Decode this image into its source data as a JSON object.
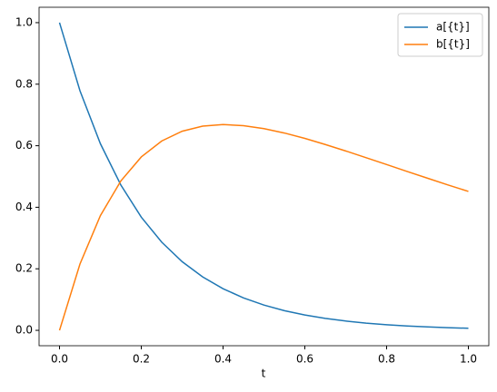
{
  "chart_data": {
    "type": "line",
    "x": [
      0,
      0.05,
      0.1,
      0.15,
      0.2,
      0.25,
      0.3,
      0.35,
      0.4,
      0.45,
      0.5,
      0.55,
      0.6,
      0.65,
      0.7,
      0.75,
      0.8,
      0.85,
      0.9,
      0.95,
      1.0
    ],
    "series": [
      {
        "name": "a[{t}]",
        "color": "#1f77b4",
        "values": [
          1,
          0.7788,
          0.6065,
          0.4724,
          0.3679,
          0.2865,
          0.2231,
          0.1738,
          0.1353,
          0.1054,
          0.0821,
          0.0639,
          0.0498,
          0.0388,
          0.0302,
          0.0235,
          0.0183,
          0.0143,
          0.0111,
          0.0087,
          0.0067
        ]
      },
      {
        "name": "b[{t}]",
        "color": "#ff7f0e",
        "values": [
          0,
          0.2155,
          0.3729,
          0.4854,
          0.5635,
          0.6154,
          0.6471,
          0.6636,
          0.6688,
          0.6653,
          0.6555,
          0.6413,
          0.6238,
          0.604,
          0.583,
          0.5611,
          0.5388,
          0.5164,
          0.4944,
          0.4725,
          0.4515
        ]
      }
    ],
    "xlabel": "t",
    "xlim": [
      -0.05,
      1.05
    ],
    "ylim": [
      -0.05,
      1.05
    ],
    "xticks": [
      {
        "value": 0,
        "label": "0.0"
      },
      {
        "value": 0.2,
        "label": "0.2"
      },
      {
        "value": 0.4,
        "label": "0.4"
      },
      {
        "value": 0.6,
        "label": "0.6"
      },
      {
        "value": 0.8,
        "label": "0.8"
      },
      {
        "value": 1.0,
        "label": "1.0"
      }
    ],
    "yticks": [
      {
        "value": 0,
        "label": "0.0"
      },
      {
        "value": 0.2,
        "label": "0.2"
      },
      {
        "value": 0.4,
        "label": "0.4"
      },
      {
        "value": 0.6,
        "label": "0.6"
      },
      {
        "value": 0.8,
        "label": "0.8"
      },
      {
        "value": 1.0,
        "label": "1.0"
      }
    ],
    "legend": "upper right"
  }
}
